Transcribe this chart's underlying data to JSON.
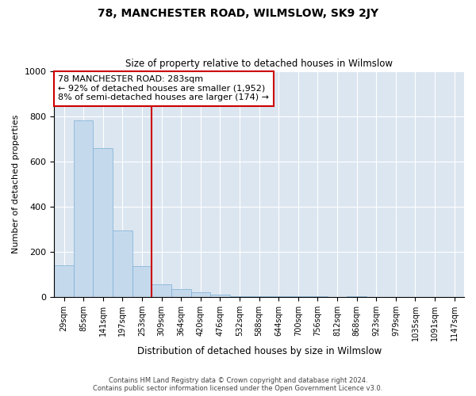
{
  "title": "78, MANCHESTER ROAD, WILMSLOW, SK9 2JY",
  "subtitle": "Size of property relative to detached houses in Wilmslow",
  "xlabel": "Distribution of detached houses by size in Wilmslow",
  "ylabel": "Number of detached properties",
  "footer1": "Contains HM Land Registry data © Crown copyright and database right 2024.",
  "footer2": "Contains public sector information licensed under the Open Government Licence v3.0.",
  "bins": [
    "29sqm",
    "85sqm",
    "141sqm",
    "197sqm",
    "253sqm",
    "309sqm",
    "364sqm",
    "420sqm",
    "476sqm",
    "532sqm",
    "588sqm",
    "644sqm",
    "700sqm",
    "756sqm",
    "812sqm",
    "868sqm",
    "923sqm",
    "979sqm",
    "1035sqm",
    "1091sqm",
    "1147sqm"
  ],
  "values": [
    140,
    780,
    660,
    295,
    135,
    55,
    35,
    20,
    10,
    5,
    3,
    5,
    3,
    3,
    0,
    5,
    0,
    0,
    0,
    0,
    0
  ],
  "bar_color": "#c5d9ed",
  "bar_edge_color": "#7bafd4",
  "red_line_index": 5,
  "annotation_text_line1": "78 MANCHESTER ROAD: 283sqm",
  "annotation_text_line2": "← 92% of detached houses are smaller (1,952)",
  "annotation_text_line3": "8% of semi-detached houses are larger (174) →",
  "annotation_box_color": "#ffffff",
  "annotation_box_edge_color": "#cc0000",
  "ylim": [
    0,
    1000
  ],
  "background_color": "#dce6f1",
  "grid_color": "#ffffff",
  "property_line_color": "#cc0000"
}
